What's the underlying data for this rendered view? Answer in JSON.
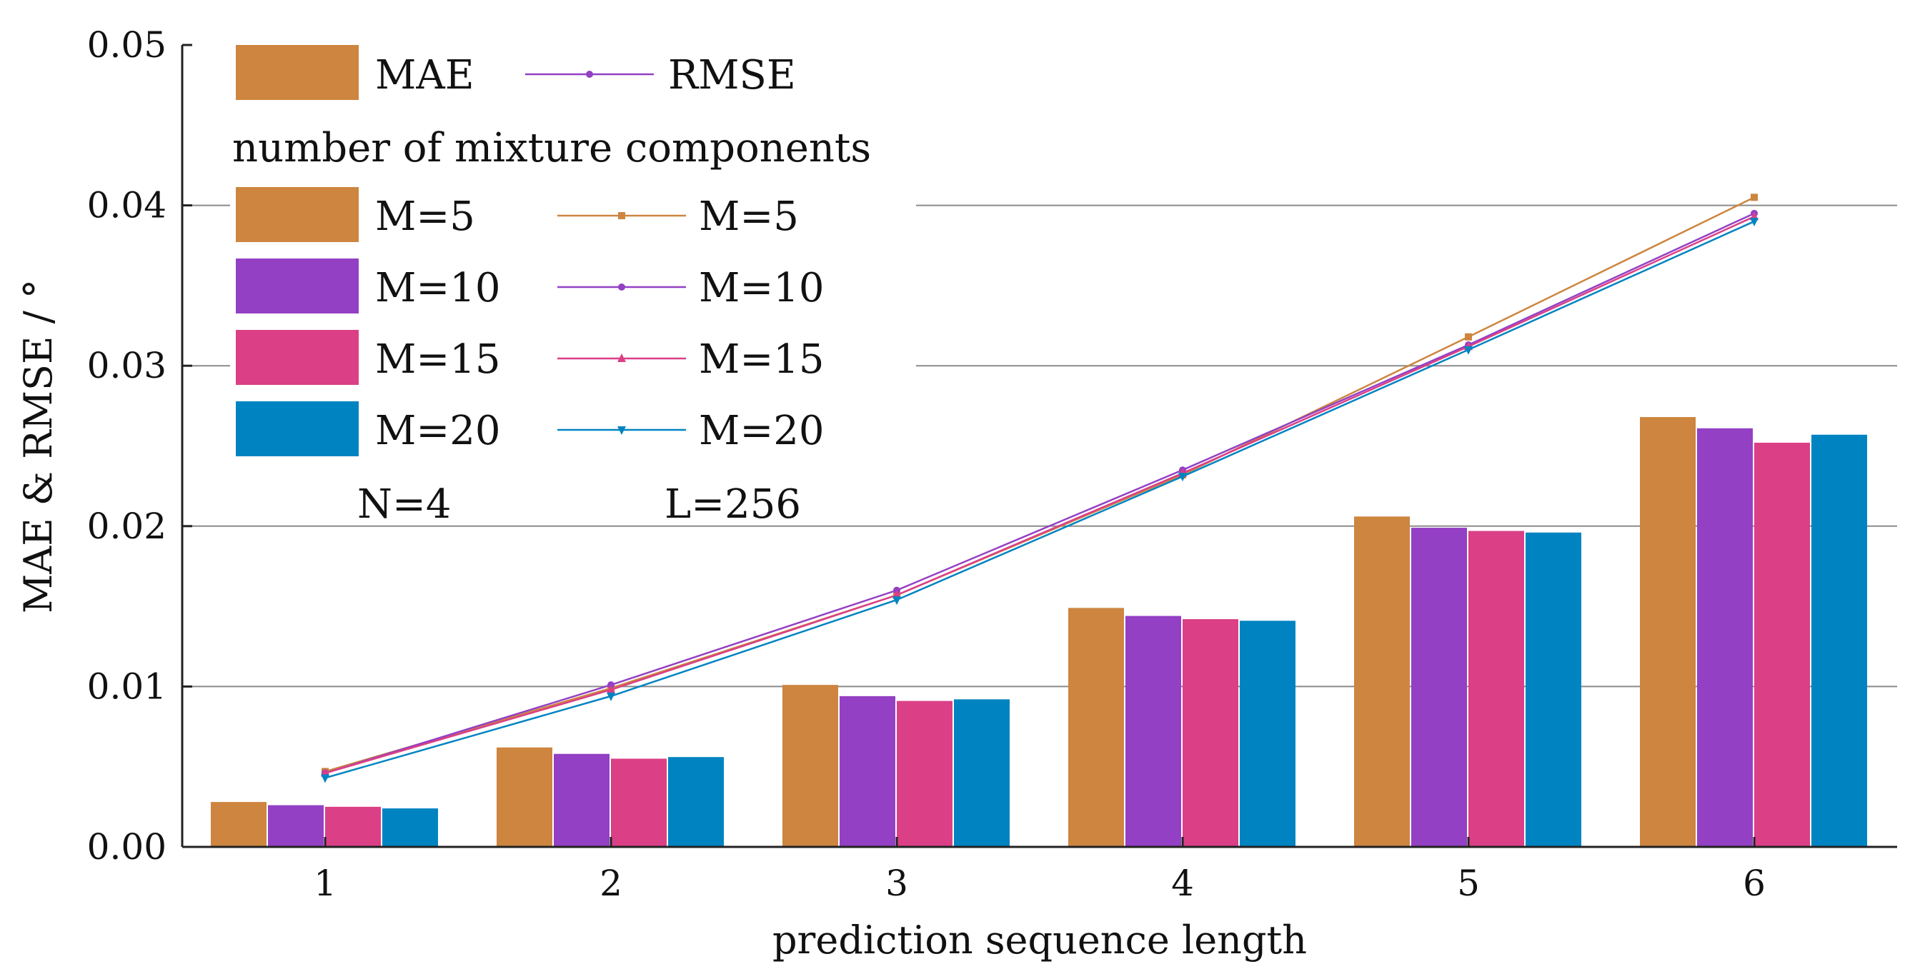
{
  "chart_data": {
    "type": "bar",
    "title": "",
    "xlabel": "prediction sequence length",
    "ylabel": "MAE & RMSE / °",
    "ylim": [
      0,
      0.05
    ],
    "yticks": [
      0,
      0.01,
      0.02,
      0.03,
      0.04,
      0.05
    ],
    "yticklabels": [
      "0.00",
      "0.01",
      "0.02",
      "0.03",
      "0.04",
      "0.05"
    ],
    "grid": true,
    "categories": [
      "1",
      "2",
      "3",
      "4",
      "5",
      "6"
    ],
    "series": [
      {
        "name": "M=5",
        "kind": "bar",
        "metric": "MAE",
        "color": "#CD853F",
        "values": [
          0.0028,
          0.0062,
          0.0101,
          0.0149,
          0.0206,
          0.0268
        ]
      },
      {
        "name": "M=10",
        "kind": "bar",
        "metric": "MAE",
        "color": "#9340C4",
        "values": [
          0.0026,
          0.0058,
          0.0094,
          0.0144,
          0.0199,
          0.0261
        ]
      },
      {
        "name": "M=15",
        "kind": "bar",
        "metric": "MAE",
        "color": "#DB3F86",
        "values": [
          0.0025,
          0.0055,
          0.0091,
          0.0142,
          0.0197,
          0.0252
        ]
      },
      {
        "name": "M=20",
        "kind": "bar",
        "metric": "MAE",
        "color": "#0084C1",
        "values": [
          0.0024,
          0.0056,
          0.0092,
          0.0141,
          0.0196,
          0.0257
        ]
      },
      {
        "name": "M=5",
        "kind": "line",
        "metric": "RMSE",
        "marker": "square",
        "color": "#CD853F",
        "values": [
          0.0047,
          0.0099,
          0.0157,
          0.0232,
          0.0318,
          0.0405
        ]
      },
      {
        "name": "M=10",
        "kind": "line",
        "metric": "RMSE",
        "marker": "circle",
        "color": "#9340C4",
        "values": [
          0.0046,
          0.0101,
          0.016,
          0.0235,
          0.0313,
          0.0395
        ]
      },
      {
        "name": "M=15",
        "kind": "line",
        "metric": "RMSE",
        "marker": "triangle",
        "color": "#DB3F86",
        "values": [
          0.0046,
          0.0098,
          0.0157,
          0.0233,
          0.0312,
          0.0393
        ]
      },
      {
        "name": "M=20",
        "kind": "line",
        "metric": "RMSE",
        "marker": "triangle-down",
        "color": "#0084C1",
        "values": [
          0.0043,
          0.0094,
          0.0154,
          0.0231,
          0.031,
          0.039
        ]
      }
    ],
    "legend": {
      "placement": "top-left",
      "mae_label": "MAE",
      "rmse_label": "RMSE",
      "heading": "number of mixture components",
      "entries": [
        "M=5",
        "M=10",
        "M=15",
        "M=20"
      ],
      "note_left": "N=4",
      "note_right": "L=256",
      "mae_color": "#CD853F",
      "rmse_color": "#9340C4"
    }
  }
}
